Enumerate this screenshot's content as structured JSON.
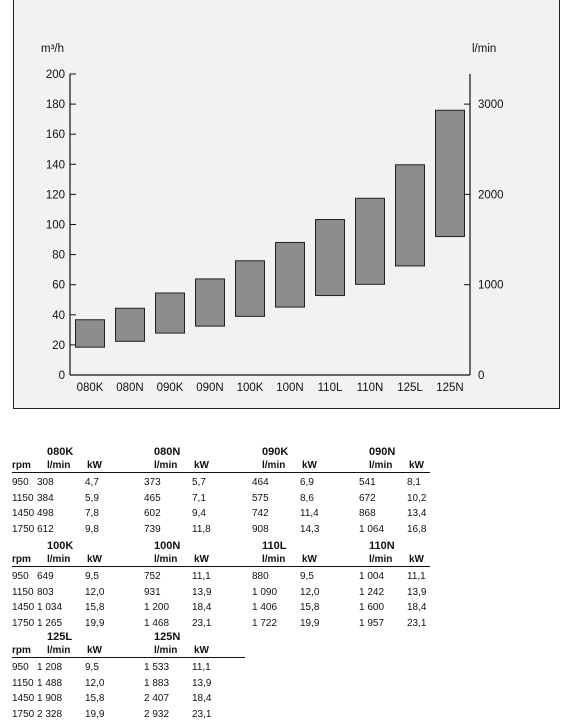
{
  "chart_data": {
    "type": "range-bar",
    "left_unit": "m³/h",
    "right_unit": "l/min",
    "left_ticks": [
      "0",
      "20",
      "40",
      "60",
      "80",
      "100",
      "120",
      "140",
      "160",
      "180",
      "200"
    ],
    "right_ticks": [
      "0",
      "1000",
      "2000",
      "3000"
    ],
    "ylim_left": [
      0,
      200
    ],
    "ylim_right_lpm": [
      0,
      3333.33
    ],
    "categories": [
      "080K",
      "080N",
      "090K",
      "090N",
      "100K",
      "100N",
      "110L",
      "110N",
      "125L",
      "125N"
    ],
    "ranges_lpm": [
      [
        308,
        612
      ],
      [
        373,
        739
      ],
      [
        464,
        908
      ],
      [
        541,
        1064
      ],
      [
        649,
        1265
      ],
      [
        752,
        1468
      ],
      [
        880,
        1722
      ],
      [
        1004,
        1957
      ],
      [
        1208,
        2328
      ],
      [
        1533,
        2932
      ]
    ],
    "bar_color": "#8c8c8c"
  },
  "table": {
    "rpm_label": "rpm",
    "flow_label": "l/min",
    "power_label": "kW",
    "groups": [
      {
        "models": [
          {
            "name": "080K",
            "rows": [
              [
                "308",
                "4,7"
              ],
              [
                "384",
                "5,9"
              ],
              [
                "498",
                "7,8"
              ],
              [
                "612",
                "9,8"
              ]
            ]
          },
          {
            "name": "080N",
            "rows": [
              [
                "373",
                "5,7"
              ],
              [
                "465",
                "7,1"
              ],
              [
                "602",
                "9,4"
              ],
              [
                "739",
                "11,8"
              ]
            ]
          },
          {
            "name": "090K",
            "rows": [
              [
                "464",
                "6,9"
              ],
              [
                "575",
                "8,6"
              ],
              [
                "742",
                "11,4"
              ],
              [
                "908",
                "14,3"
              ]
            ]
          },
          {
            "name": "090N",
            "rows": [
              [
                "541",
                "8,1"
              ],
              [
                "672",
                "10,2"
              ],
              [
                "868",
                "13,4"
              ],
              [
                "1 064",
                "16,8"
              ]
            ]
          }
        ],
        "rpms": [
          "950",
          "1150",
          "1450",
          "1750"
        ]
      },
      {
        "models": [
          {
            "name": "100K",
            "rows": [
              [
                "649",
                "9,5"
              ],
              [
                "803",
                "12,0"
              ],
              [
                "1 034",
                "15,8"
              ],
              [
                "1 265",
                "19,9"
              ]
            ]
          },
          {
            "name": "100N",
            "rows": [
              [
                "752",
                "11,1"
              ],
              [
                "931",
                "13,9"
              ],
              [
                "1 200",
                "18,4"
              ],
              [
                "1 468",
                "23,1"
              ]
            ]
          },
          {
            "name": "110L",
            "rows": [
              [
                "880",
                "9,5"
              ],
              [
                "1 090",
                "12,0"
              ],
              [
                "1 406",
                "15,8"
              ],
              [
                "1 722",
                "19,9"
              ]
            ]
          },
          {
            "name": "110N",
            "rows": [
              [
                "1 004",
                "11,1"
              ],
              [
                "1 242",
                "13,9"
              ],
              [
                "1 600",
                "18,4"
              ],
              [
                "1 957",
                "23,1"
              ]
            ]
          }
        ],
        "rpms": [
          "950",
          "1150",
          "1450",
          "1750"
        ]
      },
      {
        "models": [
          {
            "name": "125L",
            "rows": [
              [
                "1 208",
                "9,5"
              ],
              [
                "1 488",
                "12,0"
              ],
              [
                "1 908",
                "15,8"
              ],
              [
                "2 328",
                "19,9"
              ]
            ]
          },
          {
            "name": "125N",
            "rows": [
              [
                "1 533",
                "11,1"
              ],
              [
                "1 883",
                "13,9"
              ],
              [
                "2 407",
                "18,4"
              ],
              [
                "2 932",
                "23,1"
              ]
            ]
          }
        ],
        "rpms": [
          "950",
          "1150",
          "1450",
          "1750"
        ]
      }
    ]
  }
}
